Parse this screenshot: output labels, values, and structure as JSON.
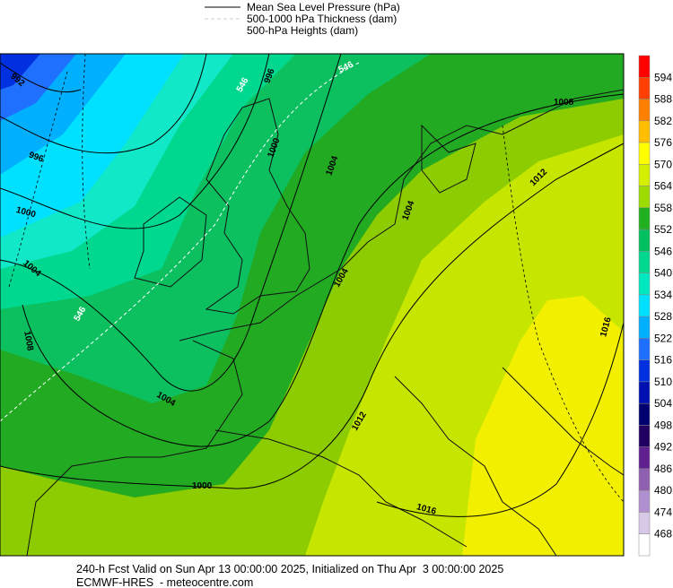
{
  "legend": [
    "Mean Sea Level Pressure (hPa)",
    "500-1000 hPa Thickness (dam)",
    "500-hPa Heights (dam)"
  ],
  "colorbar": {
    "labels": [
      "594",
      "588",
      "582",
      "576",
      "570",
      "564",
      "558",
      "552",
      "546",
      "540",
      "534",
      "528",
      "522",
      "516",
      "510",
      "504",
      "498",
      "492",
      "486",
      "480",
      "474",
      "468"
    ],
    "colors": [
      "#ff0000",
      "#ff4000",
      "#ff8000",
      "#ffbf00",
      "#ffff00",
      "#d4f000",
      "#9cdc00",
      "#20b020",
      "#00c060",
      "#00d890",
      "#00e8c0",
      "#00e0ff",
      "#00b0ff",
      "#2070ff",
      "#0030e0",
      "#0010b0",
      "#000070",
      "#200060",
      "#602090",
      "#9060b0",
      "#b090d0",
      "#d8c8e8",
      "#ffffff"
    ]
  },
  "contour_labels": [
    "992",
    "996",
    "1000",
    "1004",
    "1008",
    "546",
    "546",
    "996",
    "1000",
    "546",
    "1004",
    "1004",
    "1004",
    "1000",
    "1012",
    "1016",
    "1016",
    "1012",
    "1008",
    "1004"
  ],
  "footer": {
    "line1": "240-h Fcst Valid on Sun Apr 13 00:00:00 2025, Initialized on Thu Apr  3 00:00:00 2025",
    "line2": "ECMWF-HRES  - meteocentre.com"
  }
}
